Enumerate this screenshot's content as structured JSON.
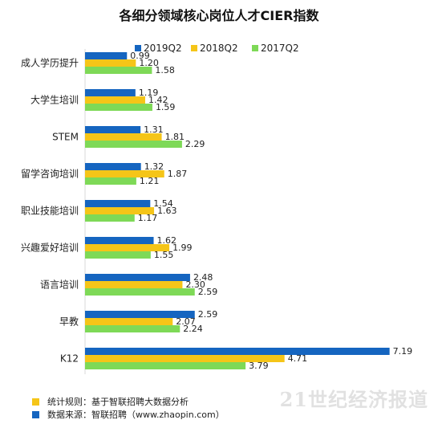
{
  "chart_data": {
    "type": "bar",
    "orientation": "horizontal",
    "title": "各细分领域核心岗位人才CIER指数",
    "categories": [
      "成人学历提升",
      "大学生培训",
      "STEM",
      "留学咨询培训",
      "职业技能培训",
      "兴趣爱好培训",
      "语言培训",
      "早教",
      "K12"
    ],
    "series": [
      {
        "name": "2019Q2",
        "color": "#1565c0",
        "values": [
          0.99,
          1.19,
          1.31,
          1.32,
          1.54,
          1.62,
          2.48,
          2.59,
          7.19
        ]
      },
      {
        "name": "2018Q2",
        "color": "#f5c518",
        "values": [
          1.2,
          1.42,
          1.81,
          1.87,
          1.63,
          1.99,
          2.3,
          2.07,
          4.71
        ]
      },
      {
        "name": "2017Q2",
        "color": "#7ed957",
        "values": [
          1.58,
          1.59,
          2.29,
          1.21,
          1.17,
          1.55,
          2.59,
          2.24,
          3.79
        ]
      }
    ],
    "value_labels": [
      [
        "0.99",
        "1.19",
        "1.31",
        "1.32",
        "1.54",
        "1.62",
        "2.48",
        "2.59",
        "7.19"
      ],
      [
        "1.20",
        "1.42",
        "1.81",
        "1.87",
        "1.63",
        "1.99",
        "2.30",
        "2.07",
        "4.71"
      ],
      [
        "1.58",
        "1.59",
        "2.29",
        "1.21",
        "1.17",
        "1.55",
        "2.59",
        "2.24",
        "3.79"
      ]
    ],
    "xlim": [
      0,
      7.5
    ],
    "legend": "top",
    "grid": false
  },
  "footnotes": [
    {
      "text": "统计规则：基于智联招聘大数据分析",
      "color": "#f5c518"
    },
    {
      "text": "数据来源：智联招聘（www.zhaopin.com）",
      "color": "#1565c0"
    }
  ],
  "watermark": {
    "text": "21世纪经济报道"
  }
}
